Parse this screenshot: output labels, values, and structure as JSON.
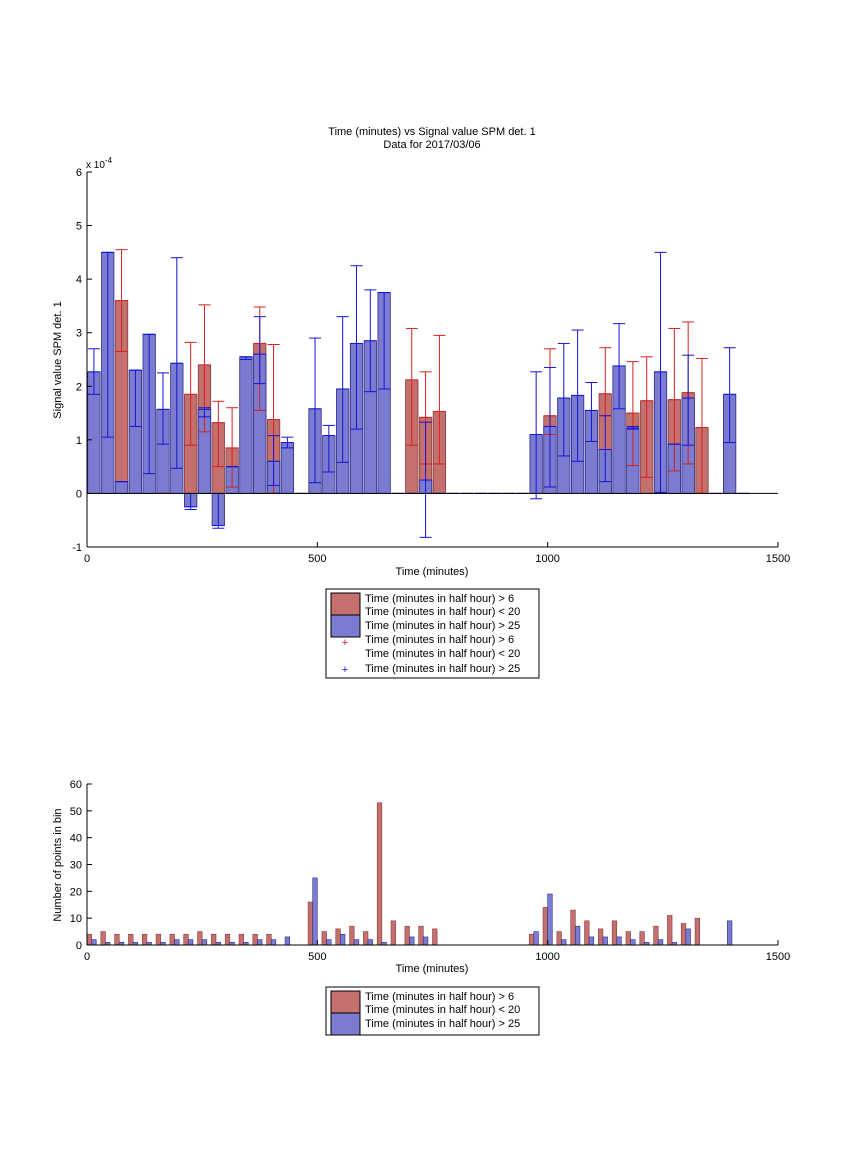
{
  "colors": {
    "red": "#c4706e",
    "red_edge": "#8a3b39",
    "red_err": "#d42020",
    "blue": "#7b7bd0",
    "blue_edge": "#2c2c8a",
    "blue_err": "#1414d6"
  },
  "legend_labels": {
    "red_bar": [
      "Time (minutes in half hour) > 6",
      "Time (minutes in half hour) < 20"
    ],
    "blue_bar": [
      "Time (minutes in half hour) > 25"
    ]
  },
  "chart_data": [
    {
      "type": "bar",
      "title": "Time (minutes) vs Signal value SPM det. 1",
      "subtitle": "Data for 2017/03/06",
      "xlabel": "Time (minutes)",
      "ylabel": "Signal value SPM det. 1",
      "y_exponent": "x 10",
      "y_exponent_power": "-4",
      "xlim": [
        0,
        1500
      ],
      "ylim": [
        -1,
        6
      ],
      "xticks": [
        "0",
        "500",
        "1000",
        "1500"
      ],
      "yticks": [
        "-1",
        "0",
        "1",
        "2",
        "3",
        "4",
        "5",
        "6"
      ],
      "bar_width": 27,
      "series": [
        {
          "values": [
            [
              75,
              3.6,
              2.65,
              4.55
            ],
            [
              165,
              0,
              0,
              0
            ],
            [
              225,
              1.85,
              0.9,
              2.82
            ],
            [
              255,
              2.4,
              1.15,
              3.52
            ],
            [
              285,
              1.32,
              0.5,
              1.72
            ],
            [
              315,
              0.85,
              0.12,
              1.6
            ],
            [
              375,
              2.8,
              1.55,
              3.48
            ],
            [
              405,
              1.38,
              0,
              2.78
            ],
            [
              705,
              2.12,
              0.9,
              3.08
            ],
            [
              735,
              1.42,
              0.55,
              2.27
            ],
            [
              765,
              1.53,
              0.55,
              2.95
            ],
            [
              1005,
              1.45,
              1.1,
              2.7
            ],
            [
              1125,
              1.86,
              1.45,
              2.72
            ],
            [
              1185,
              1.5,
              0.52,
              2.46
            ],
            [
              1215,
              1.73,
              0.3,
              2.55
            ],
            [
              1275,
              1.75,
              0.42,
              3.08
            ],
            [
              1305,
              1.88,
              0.55,
              3.2
            ],
            [
              1335,
              1.23,
              0,
              2.52
            ]
          ]
        },
        {
          "values": [
            [
              15,
              2.27,
              1.85,
              2.7
            ],
            [
              45,
              4.5,
              1.05,
              4.5
            ],
            [
              75,
              0.22,
              0.22,
              0.22
            ],
            [
              105,
              2.3,
              1.25,
              2.3
            ],
            [
              135,
              2.97,
              0.37,
              2.97
            ],
            [
              165,
              1.57,
              0.92,
              2.25
            ],
            [
              195,
              2.43,
              0.47,
              4.4
            ],
            [
              225,
              -0.25,
              -0.3,
              0
            ],
            [
              255,
              1.57,
              1.43,
              1.6
            ],
            [
              285,
              -0.6,
              -0.65,
              0
            ],
            [
              315,
              0.5,
              0.5,
              0.5
            ],
            [
              345,
              2.55,
              2.5,
              2.55
            ],
            [
              375,
              2.6,
              2.05,
              3.3
            ],
            [
              405,
              0.6,
              0.15,
              1.08
            ],
            [
              435,
              0.95,
              0.85,
              1.05
            ],
            [
              465,
              0,
              0,
              0
            ],
            [
              495,
              1.58,
              0.2,
              2.9
            ],
            [
              525,
              1.08,
              0.4,
              1.27
            ],
            [
              555,
              1.95,
              0.58,
              3.3
            ],
            [
              585,
              2.8,
              1.2,
              4.25
            ],
            [
              615,
              2.85,
              1.9,
              3.8
            ],
            [
              645,
              3.75,
              1.95,
              3.75
            ],
            [
              675,
              0,
              0,
              0
            ],
            [
              705,
              0,
              0,
              0
            ],
            [
              735,
              0.25,
              -0.82,
              1.33
            ],
            [
              765,
              0,
              0,
              0
            ],
            [
              795,
              0,
              0,
              0
            ],
            [
              825,
              0,
              0,
              0
            ],
            [
              855,
              0,
              0,
              0
            ],
            [
              885,
              0,
              0,
              0
            ],
            [
              915,
              0,
              0,
              0
            ],
            [
              945,
              0,
              0,
              0
            ],
            [
              975,
              1.1,
              -0.1,
              2.27
            ],
            [
              1005,
              1.25,
              0.12,
              2.35
            ],
            [
              1035,
              1.78,
              0.7,
              2.8
            ],
            [
              1065,
              1.83,
              0.6,
              3.05
            ],
            [
              1095,
              1.55,
              0.97,
              2.07
            ],
            [
              1125,
              0.82,
              0.22,
              1.45
            ],
            [
              1155,
              2.38,
              1.58,
              3.17
            ],
            [
              1185,
              1.22,
              1.2,
              1.25
            ],
            [
              1245,
              2.27,
              0.02,
              4.5
            ],
            [
              1275,
              0.92,
              0.92,
              0.92
            ],
            [
              1305,
              1.78,
              0.9,
              2.58
            ],
            [
              1365,
              0,
              0,
              0
            ],
            [
              1395,
              1.85,
              0.95,
              2.72
            ],
            [
              1425,
              0,
              0,
              0
            ]
          ]
        }
      ]
    },
    {
      "type": "bar",
      "xlabel": "Time (minutes)",
      "ylabel": "Number of points in bin",
      "xlim": [
        0,
        1500
      ],
      "ylim": [
        0,
        60
      ],
      "xticks": [
        "0",
        "500",
        "1000",
        "1500"
      ],
      "yticks": [
        "0",
        "10",
        "20",
        "30",
        "40",
        "50",
        "60"
      ],
      "bar_width": 10,
      "series": [
        {
          "x": [
            5,
            35,
            65,
            95,
            125,
            155,
            185,
            215,
            245,
            275,
            305,
            335,
            365,
            395,
            485,
            515,
            545,
            575,
            605,
            635,
            665,
            695,
            725,
            755,
            965,
            995,
            1025,
            1055,
            1085,
            1115,
            1145,
            1175,
            1205,
            1235,
            1265,
            1295,
            1325
          ],
          "values": [
            4,
            5,
            4,
            4,
            4,
            4,
            4,
            4,
            5,
            4,
            4,
            4,
            4,
            4,
            16,
            5,
            6,
            7,
            5,
            53,
            9,
            7,
            7,
            6,
            4,
            14,
            5,
            13,
            9,
            6,
            9,
            5,
            5,
            7,
            11,
            8,
            10
          ]
        },
        {
          "x": [
            15,
            45,
            75,
            105,
            135,
            165,
            195,
            225,
            255,
            285,
            315,
            345,
            375,
            405,
            435,
            495,
            525,
            555,
            585,
            615,
            645,
            705,
            735,
            975,
            1005,
            1035,
            1065,
            1095,
            1125,
            1155,
            1185,
            1215,
            1245,
            1275,
            1305,
            1395
          ],
          "values": [
            2,
            1,
            1,
            1,
            1,
            1,
            2,
            2,
            2,
            1,
            1,
            1,
            2,
            2,
            3,
            25,
            2,
            4,
            2,
            2,
            1,
            3,
            3,
            5,
            19,
            2,
            7,
            3,
            3,
            3,
            2,
            1,
            2,
            1,
            6,
            9
          ]
        }
      ]
    }
  ]
}
